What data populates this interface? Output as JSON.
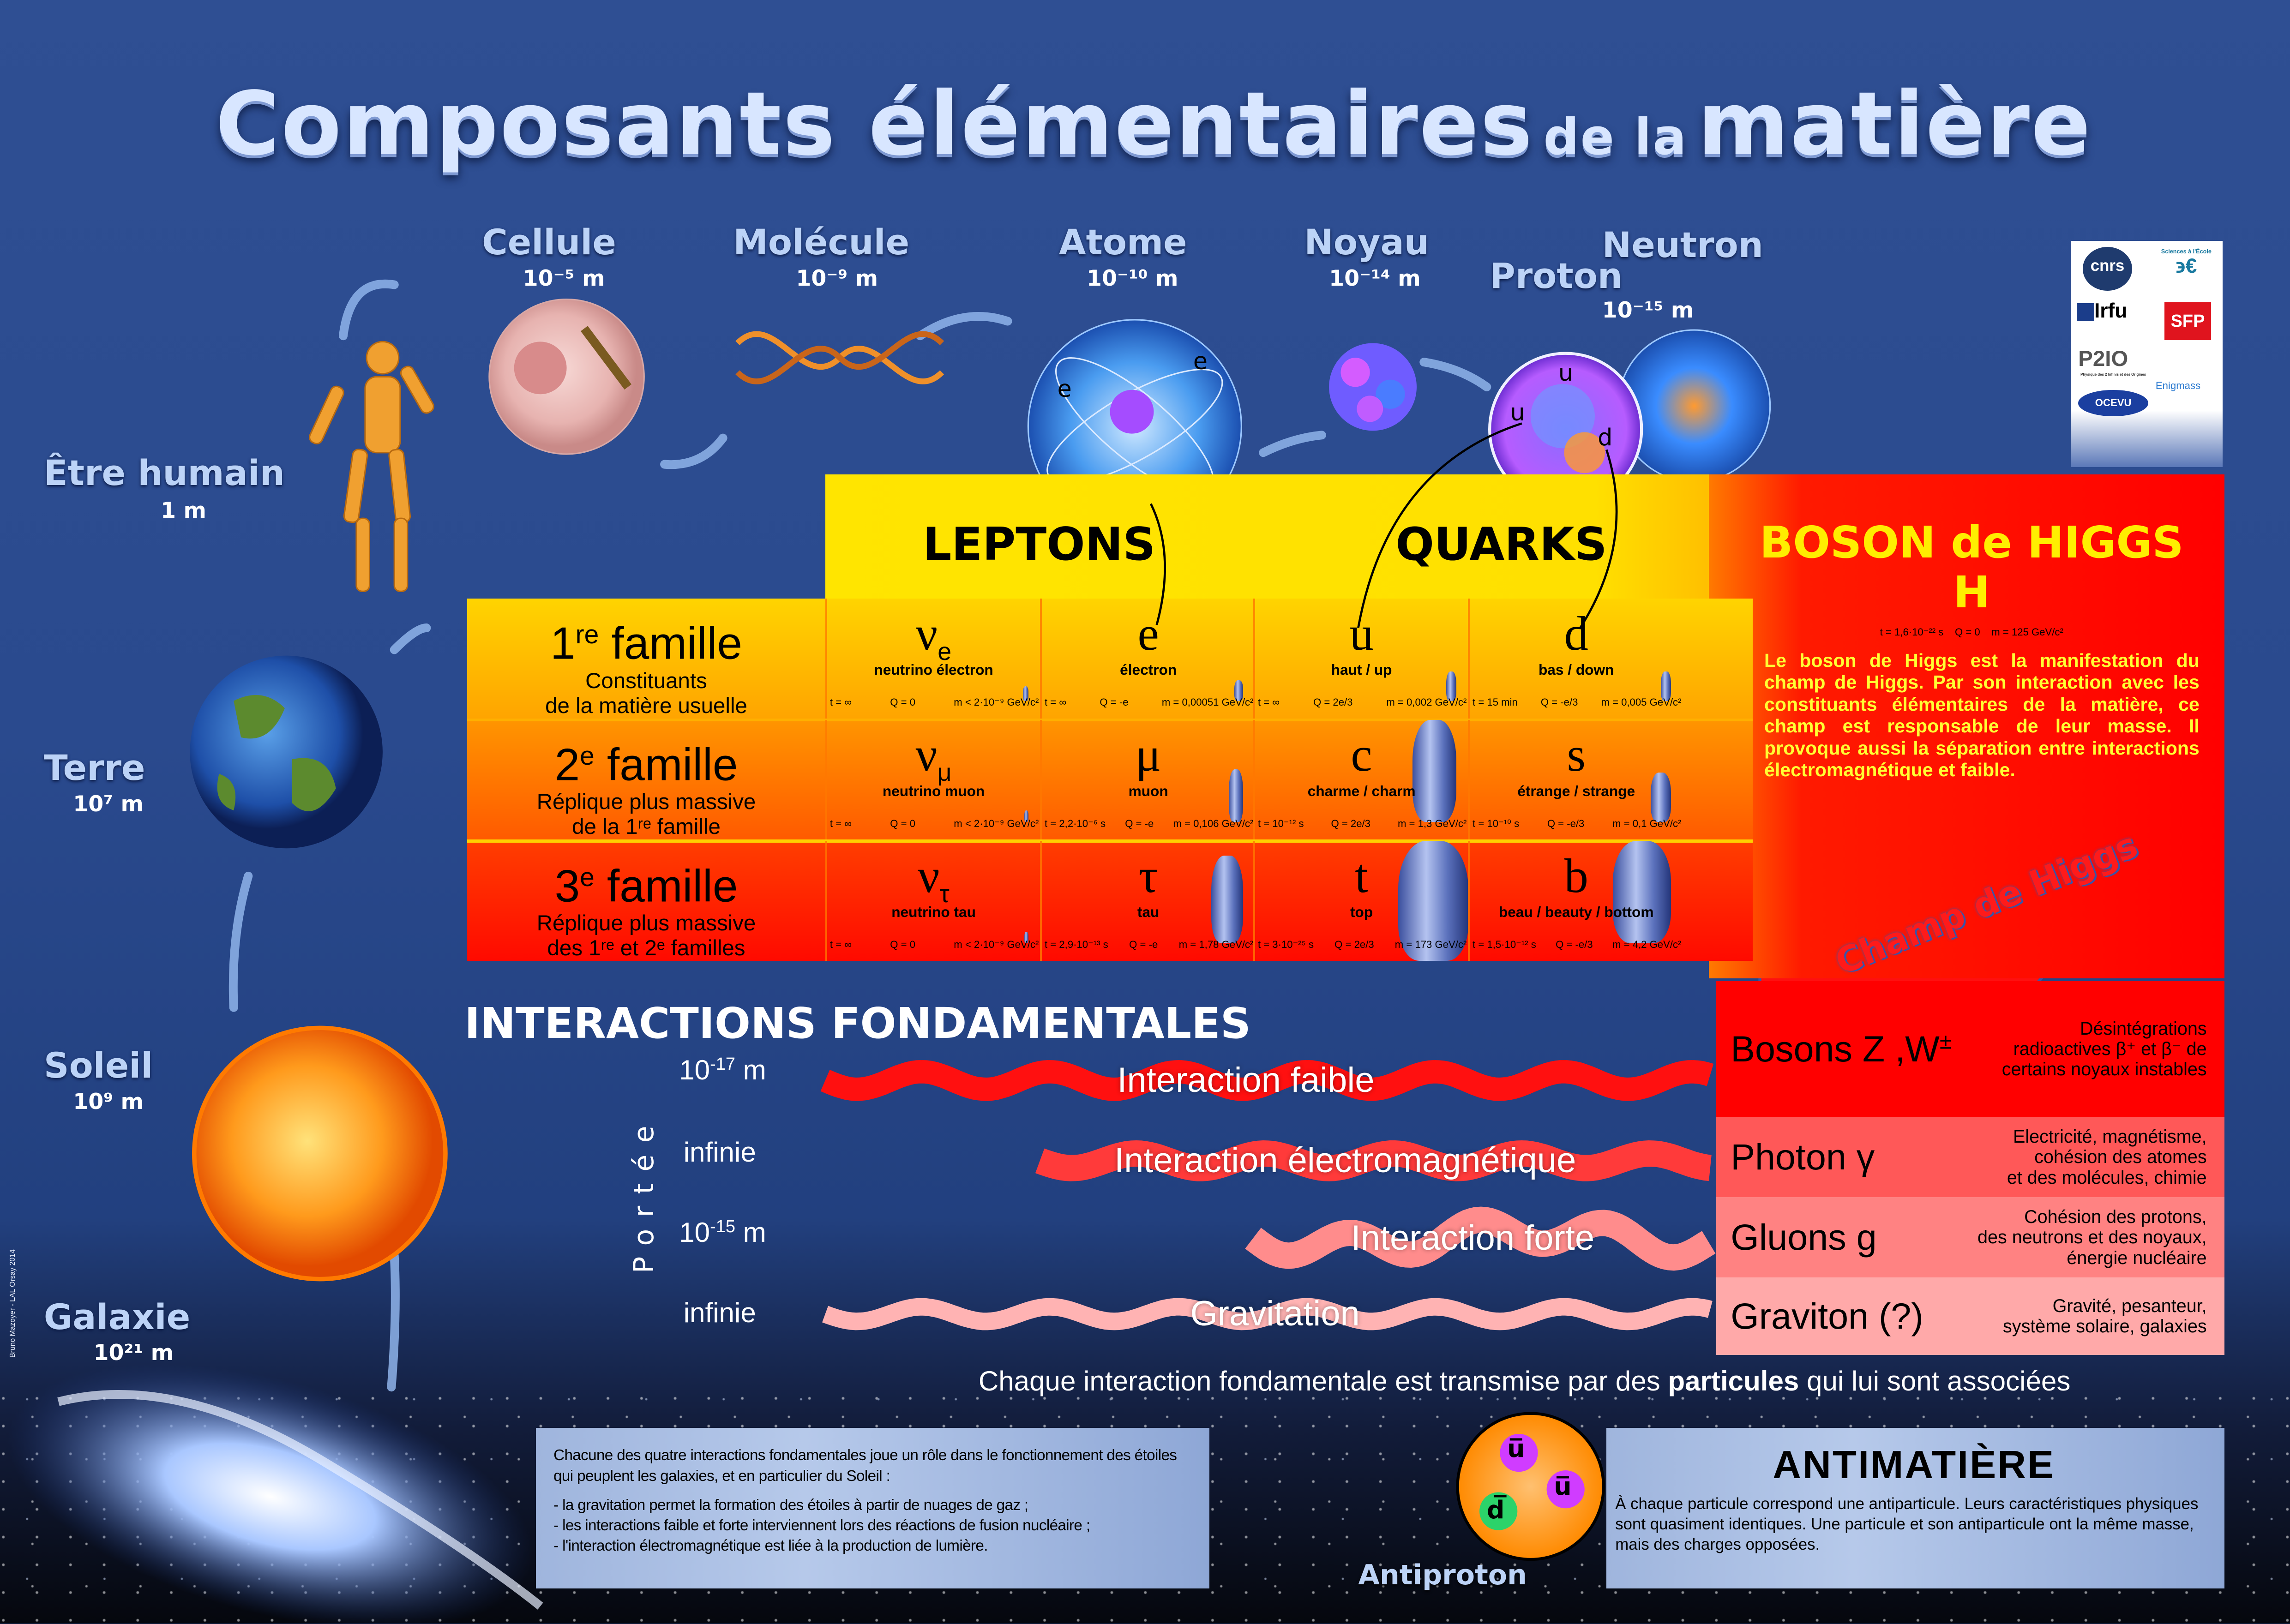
{
  "title": {
    "part1": "Composants élémentaires",
    "part2": "de la",
    "part3": "matière"
  },
  "credit": "Bruno Mazoyer - LAL Orsay 2014",
  "scales": [
    {
      "name": "Cellule",
      "size": "10⁻⁵ m"
    },
    {
      "name": "Molécule",
      "size": "10⁻⁹ m"
    },
    {
      "name": "Atome",
      "size": "10⁻¹⁰ m"
    },
    {
      "name": "Noyau",
      "size": "10⁻¹⁴ m"
    },
    {
      "name": "Proton",
      "size": "10⁻¹⁵ m"
    },
    {
      "name": "Neutron",
      "size": ""
    },
    {
      "name": "Être humain",
      "size": "1 m"
    },
    {
      "name": "Terre",
      "size": "10⁷ m"
    },
    {
      "name": "Soleil",
      "size": "10⁹ m"
    },
    {
      "name": "Galaxie",
      "size": "10²¹ m"
    }
  ],
  "atom_labels": [
    "e",
    "e",
    "e"
  ],
  "proton_quarks": [
    "u",
    "u",
    "d"
  ],
  "logos": [
    "cnrs",
    "dépasser les frontières",
    "Sciences à l'École",
    "www.sciencesalecole.org",
    "Irfu",
    "SFP",
    "P2IO",
    "Physique des 2 Infinis et des Origines",
    "OCEVU",
    "Enigmass"
  ],
  "headers": {
    "leptons": "LEPTONS",
    "quarks": "QUARKS"
  },
  "families": [
    {
      "num": "1",
      "sup": "re",
      "word": "famille",
      "desc1": "Constituants",
      "desc2": "de la matière usuelle"
    },
    {
      "num": "2",
      "sup": "e",
      "word": "famille",
      "desc1": "Réplique plus massive",
      "desc2": "de la 1ʳᵉ famille"
    },
    {
      "num": "3",
      "sup": "e",
      "word": "famille",
      "desc1": "Réplique plus massive",
      "desc2": "des 1ʳᵉ et 2ᵉ familles"
    }
  ],
  "particles": [
    [
      {
        "sym": "ν",
        "sub": "e",
        "name": "neutrino électron",
        "t": "t = ∞",
        "q": "Q = 0",
        "m": "m < 2·10⁻⁹ GeV/c²"
      },
      {
        "sym": "e",
        "sub": "",
        "name": "électron",
        "t": "t = ∞",
        "q": "Q = -e",
        "m": "m = 0,00051 GeV/c²"
      },
      {
        "sym": "u",
        "sub": "",
        "name": "haut / up",
        "t": "t = ∞",
        "q": "Q = 2e/3",
        "m": "m = 0,002 GeV/c²"
      },
      {
        "sym": "d",
        "sub": "",
        "name": "bas / down",
        "t": "t = 15 min",
        "q": "Q = -e/3",
        "m": "m = 0,005 GeV/c²"
      }
    ],
    [
      {
        "sym": "ν",
        "sub": "μ",
        "name": "neutrino muon",
        "t": "t = ∞",
        "q": "Q = 0",
        "m": "m < 2·10⁻⁹ GeV/c²"
      },
      {
        "sym": "μ",
        "sub": "",
        "name": "muon",
        "t": "t = 2,2·10⁻⁶ s",
        "q": "Q = -e",
        "m": "m = 0,106 GeV/c²"
      },
      {
        "sym": "c",
        "sub": "",
        "name": "charme / charm",
        "t": "t = 10⁻¹² s",
        "q": "Q = 2e/3",
        "m": "m = 1,3 GeV/c²"
      },
      {
        "sym": "s",
        "sub": "",
        "name": "étrange / strange",
        "t": "t = 10⁻¹⁰ s",
        "q": "Q = -e/3",
        "m": "m = 0,1 GeV/c²"
      }
    ],
    [
      {
        "sym": "ν",
        "sub": "τ",
        "name": "neutrino tau",
        "t": "t = ∞",
        "q": "Q = 0",
        "m": "m < 2·10⁻⁹ GeV/c²"
      },
      {
        "sym": "τ",
        "sub": "",
        "name": "tau",
        "t": "t = 2,9·10⁻¹³ s",
        "q": "Q = -e",
        "m": "m = 1,78 GeV/c²"
      },
      {
        "sym": "t",
        "sub": "",
        "name": "top",
        "t": "t = 3·10⁻²⁵ s",
        "q": "Q = 2e/3",
        "m": "m = 173 GeV/c²"
      },
      {
        "sym": "b",
        "sub": "",
        "name": "beau / beauty / bottom",
        "t": "t = 1,5·10⁻¹² s",
        "q": "Q = -e/3",
        "m": "m = 4,2 GeV/c²"
      }
    ]
  ],
  "higgs": {
    "title": "BOSON de HIGGS",
    "symbol": "H",
    "t": "t = 1,6·10⁻²² s",
    "q": "Q = 0",
    "m": "m = 125 GeV/c²",
    "description": "Le boson de Higgs est la manifestation du champ de Higgs. Par son interaction avec les constituants élémentaires de la matière, ce champ est responsable de leur masse. Il provoque aussi la séparation entre interactions électromagnétique et faible.",
    "field_label": "Champ de Higgs"
  },
  "interactions": {
    "title": "INTERACTIONS FONDAMENTALES",
    "portee": "Portée",
    "items": [
      {
        "name": "Interaction faible",
        "range": "10",
        "range_exp": "-17",
        "range_unit": " m",
        "color": "#ff1010"
      },
      {
        "name": "Interaction électromagnétique",
        "range": "infinie",
        "range_exp": "",
        "range_unit": "",
        "color": "#ff3a3a"
      },
      {
        "name": "Interaction forte",
        "range": "10",
        "range_exp": "-15",
        "range_unit": " m",
        "color": "#ff8c8c"
      },
      {
        "name": "Gravitation",
        "range": "infinie",
        "range_exp": "",
        "range_unit": "",
        "color": "#ffb3b3"
      }
    ]
  },
  "bosons": [
    {
      "name": "Bosons Z ,W",
      "sup": "±",
      "desc": [
        "Désintégrations",
        "radioactives β⁺ et  β⁻ de",
        "certains noyaux instables"
      ],
      "color": "#ff0000"
    },
    {
      "name": "Photon γ",
      "sup": "",
      "desc": [
        "Electricité, magnétisme,",
        "cohésion des atomes",
        "et des molécules, chimie"
      ],
      "color": "#ff5858"
    },
    {
      "name": "Gluons g",
      "sup": "",
      "desc": [
        "Cohésion des protons,",
        "des neutrons et des noyaux,",
        "énergie nucléaire"
      ],
      "color": "#ff8282"
    },
    {
      "name": "Graviton (?)",
      "sup": "",
      "desc": [
        "Gravité, pesanteur,",
        "système solaire, galaxies"
      ],
      "color": "#ffa9a9"
    }
  ],
  "caption": {
    "before": "Chaque interaction fondamentale est transmise par des ",
    "bold": "particules",
    "after": " qui lui sont associées"
  },
  "stars_box": {
    "intro": "Chacune des quatre interactions fondamentales joue un rôle dans le fonctionnement des étoiles qui peuplent les galaxies, et en particulier du Soleil :",
    "items": [
      "- la gravitation permet la formation des étoiles à partir de nuages de gaz ;",
      "- les interactions faible et forte interviennent lors des réactions de fusion nucléaire ;",
      "- l'interaction électromagnétique est liée à la production de lumière."
    ]
  },
  "antimatter": {
    "title": "ANTIMATIÈRE",
    "text": "À chaque particule correspond une antiparticule. Leurs caractéristiques physiques sont quasiment identiques. Une particule et son antiparticule ont la même masse, mais des charges opposées.",
    "antiproton_label": "Antiproton",
    "antiquarks": [
      "u̅",
      "u̅",
      "d̅"
    ]
  }
}
